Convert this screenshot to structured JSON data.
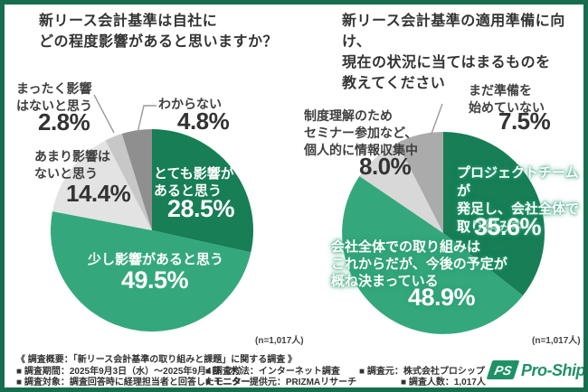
{
  "page": {
    "background_color": "#ffffff",
    "frame_color": "#176e4e"
  },
  "chart_data": [
    {
      "type": "pie",
      "title": "新リース会計基準は自社に\nどの程度影響があると思いますか？",
      "n_label": "(n=1,017人)",
      "start_angle": "top",
      "direction": "clockwise",
      "slices": [
        {
          "label": "とても影響が\nあると思う",
          "value": 28.5,
          "pct": "28.5%",
          "color": "#177e56",
          "text_color": "#ffffff"
        },
        {
          "label": "少し影響があると思う",
          "value": 49.5,
          "pct": "49.5%",
          "color": "#34a87c",
          "text_color": "#ffffff"
        },
        {
          "label": "あまり影響は\nないと思う",
          "value": 14.4,
          "pct": "14.4%",
          "color": "#e3e3e3",
          "text_color": "#404040"
        },
        {
          "label": "まったく影響\nはないと思う",
          "value": 2.8,
          "pct": "2.8%",
          "color": "#c7c7c7",
          "text_color": "#404040"
        },
        {
          "label": "わからない",
          "value": 4.8,
          "pct": "4.8%",
          "color": "#8f8f8f",
          "text_color": "#404040"
        }
      ]
    },
    {
      "type": "pie",
      "title": "新リース会計基準の適用準備に向け、\n現在の状況に当てはまるものを\n教えてください",
      "n_label": "(n=1,017人)",
      "start_angle": "top",
      "direction": "clockwise",
      "slices": [
        {
          "label": "プロジェクトチームが\n発足し、会社全体で\n取り組み中",
          "value": 35.6,
          "pct": "35.6%",
          "color": "#177e56",
          "text_color": "#ffffff"
        },
        {
          "label": "会社全体での取り組みは\nこれからだが、今後の予定が\n概ね決まっている",
          "value": 48.9,
          "pct": "48.9%",
          "color": "#34a87c",
          "text_color": "#ffffff"
        },
        {
          "label": "制度理解のため\nセミナー参加など、\n個人的に情報収集中",
          "value": 8.0,
          "pct": "8.0%",
          "color": "#d8d8d8",
          "text_color": "#404040"
        },
        {
          "label": "まだ準備を\n始めていない",
          "value": 7.5,
          "pct": "7.5%",
          "color": "#ababab",
          "text_color": "#404040"
        }
      ]
    }
  ],
  "footer": {
    "heading": "《 調査概要：「新リース会計基準の取り組みと課題」に関する調査 》",
    "row1": [
      "■ 調査期間：2025年9月3日（水）～2025年9月4日（木）",
      "■ 調査方法：インターネット調査",
      "■ 調査元：株式会社プロシップ"
    ],
    "row2": [
      "■ 調査対象：調査回答時に経理担当者と回答したモニター",
      "■ モニター提供元：PRIZMAリサーチ",
      "■ 調査人数：1,017人"
    ]
  },
  "logo": {
    "monogram": "PS",
    "text": "Pro-Ship",
    "color": "#1f9165"
  }
}
